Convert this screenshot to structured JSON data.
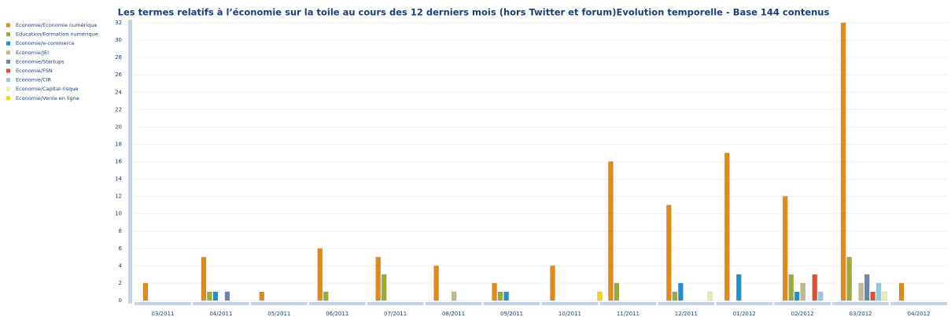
{
  "chart_data": {
    "type": "bar",
    "title": "Les termes relatifs à l’économie sur la toile au cours des 12 derniers mois (hors Twitter et forum)Evolution temporelle - Base 144 contenus",
    "categories": [
      "03/2011",
      "04/2011",
      "05/2011",
      "06/2011",
      "07/2011",
      "08/2011",
      "09/2011",
      "10/2011",
      "11/2011",
      "12/2011",
      "01/2012",
      "02/2012",
      "03/2012",
      "04/2012"
    ],
    "series": [
      {
        "name": "Economie/Economie numérique",
        "color": "#e08a1e",
        "values": [
          2,
          5,
          1,
          6,
          5,
          4,
          2,
          4,
          16,
          11,
          17,
          12,
          32,
          2
        ]
      },
      {
        "name": "Education/Formation numérique",
        "color": "#9aab3a",
        "values": [
          0,
          1,
          0,
          1,
          3,
          0,
          1,
          0,
          2,
          1,
          0,
          3,
          5,
          0
        ]
      },
      {
        "name": "Economie/e-commerce",
        "color": "#1f8fd0",
        "values": [
          0,
          1,
          0,
          0,
          0,
          0,
          1,
          0,
          0,
          2,
          3,
          1,
          0,
          0
        ]
      },
      {
        "name": "Economie/JEI",
        "color": "#c0b890",
        "values": [
          0,
          0,
          0,
          0,
          0,
          1,
          0,
          0,
          0,
          0,
          0,
          2,
          2,
          0
        ]
      },
      {
        "name": "Economie/Startups",
        "color": "#6b87a8",
        "values": [
          0,
          1,
          0,
          0,
          0,
          0,
          0,
          0,
          0,
          0,
          0,
          0,
          3,
          0
        ]
      },
      {
        "name": "Economie/FSN",
        "color": "#e05030",
        "values": [
          0,
          0,
          0,
          0,
          0,
          0,
          0,
          0,
          0,
          0,
          0,
          3,
          1,
          0
        ]
      },
      {
        "name": "Economie/CIR",
        "color": "#8ecde0",
        "values": [
          0,
          0,
          0,
          0,
          0,
          0,
          0,
          0,
          0,
          0,
          0,
          1,
          2,
          0
        ]
      },
      {
        "name": "Economie/Capital-risque",
        "color": "#e4eeb0",
        "values": [
          0,
          0,
          0,
          0,
          0,
          0,
          0,
          0,
          0,
          1,
          0,
          0,
          1,
          0
        ]
      },
      {
        "name": "Economie/Vente en ligne",
        "color": "#f0d020",
        "values": [
          0,
          0,
          0,
          0,
          0,
          0,
          0,
          1,
          0,
          0,
          0,
          0,
          0,
          0
        ]
      }
    ],
    "ylim": [
      0,
      32
    ],
    "yticks": [
      0,
      2,
      4,
      6,
      8,
      10,
      12,
      14,
      16,
      18,
      20,
      22,
      24,
      26,
      28,
      30,
      32
    ],
    "grid": true
  }
}
